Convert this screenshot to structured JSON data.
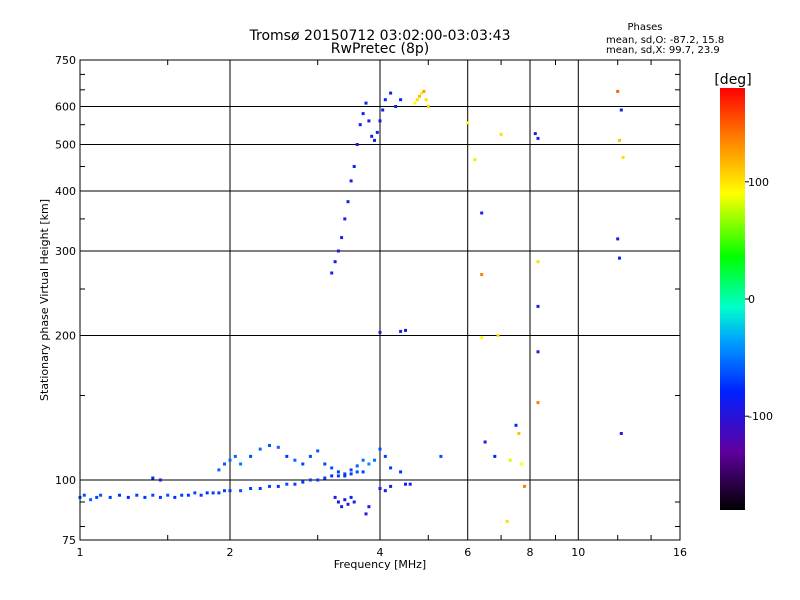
{
  "chart_data": {
    "type": "scatter",
    "title": "Tromsø 20150712 03:02:00-03:03:43",
    "subtitle": "RwPretec (8p)",
    "xlabel": "Frequency [MHz]",
    "ylabel": "Stationary phase Virtual Height [km]",
    "x_scale": "log2",
    "y_scale": "log",
    "xlim": [
      1,
      16
    ],
    "ylim": [
      75,
      750
    ],
    "x_ticks": [
      1,
      2,
      4,
      6,
      8,
      10,
      16
    ],
    "x_tick_labels": [
      "1",
      "2",
      "4",
      "6",
      "8",
      "10",
      "16"
    ],
    "y_ticks": [
      75,
      100,
      200,
      300,
      400,
      500,
      600,
      750
    ],
    "y_tick_labels": [
      "75",
      "100",
      "200",
      "300",
      "400",
      "500",
      "600",
      "750"
    ],
    "grid": true,
    "phase_info": {
      "title": "Phases",
      "line_o": "mean, sd,O: -87.2, 15.8",
      "line_x": "mean, sd,X:  99.7, 23.9"
    },
    "colorbar": {
      "label": "[deg]",
      "range": [
        -180,
        180
      ],
      "ticks": [
        100,
        0,
        -100
      ],
      "tick_labels": [
        "100",
        "0",
        "-100"
      ]
    },
    "series": [
      {
        "color_by": "phase",
        "points": [
          [
            1.0,
            92,
            -75
          ],
          [
            1.02,
            93,
            -80
          ],
          [
            1.05,
            91,
            -70
          ],
          [
            1.08,
            92,
            -85
          ],
          [
            1.1,
            93,
            -78
          ],
          [
            1.15,
            92,
            -90
          ],
          [
            1.2,
            93,
            -95
          ],
          [
            1.25,
            92,
            -100
          ],
          [
            1.3,
            93,
            -88
          ],
          [
            1.35,
            92,
            -92
          ],
          [
            1.4,
            93,
            -85
          ],
          [
            1.45,
            92,
            -90
          ],
          [
            1.5,
            93,
            -80
          ],
          [
            1.55,
            92,
            -95
          ],
          [
            1.6,
            93,
            -88
          ],
          [
            1.65,
            93,
            -92
          ],
          [
            1.7,
            94,
            -85
          ],
          [
            1.75,
            93,
            -90
          ],
          [
            1.8,
            94,
            -95
          ],
          [
            1.85,
            94,
            -88
          ],
          [
            1.9,
            94,
            -90
          ],
          [
            1.95,
            95,
            -85
          ],
          [
            2.0,
            95,
            -92
          ],
          [
            2.1,
            95,
            -80
          ],
          [
            2.2,
            96,
            -88
          ],
          [
            2.3,
            96,
            -90
          ],
          [
            2.4,
            97,
            -85
          ],
          [
            2.5,
            97,
            -92
          ],
          [
            2.6,
            98,
            -80
          ],
          [
            2.7,
            98,
            -88
          ],
          [
            2.8,
            99,
            -90
          ],
          [
            2.9,
            100,
            -85
          ],
          [
            3.0,
            100,
            -92
          ],
          [
            3.1,
            101,
            -88
          ],
          [
            3.2,
            102,
            -95
          ],
          [
            3.3,
            102,
            -90
          ],
          [
            3.4,
            103,
            -85
          ],
          [
            3.5,
            103,
            -92
          ],
          [
            3.6,
            104,
            -80
          ],
          [
            3.7,
            104,
            -88
          ],
          [
            1.4,
            101,
            -100
          ],
          [
            1.45,
            100,
            -105
          ],
          [
            1.9,
            105,
            -70
          ],
          [
            1.95,
            108,
            -75
          ],
          [
            2.0,
            110,
            -65
          ],
          [
            2.05,
            112,
            -70
          ],
          [
            2.1,
            108,
            -60
          ],
          [
            2.2,
            112,
            -80
          ],
          [
            2.3,
            116,
            -65
          ],
          [
            2.4,
            118,
            -75
          ],
          [
            2.5,
            117,
            -70
          ],
          [
            2.6,
            112,
            -90
          ],
          [
            2.7,
            110,
            -70
          ],
          [
            2.8,
            108,
            -85
          ],
          [
            2.9,
            112,
            -80
          ],
          [
            3.0,
            115,
            -75
          ],
          [
            3.1,
            108,
            -85
          ],
          [
            3.2,
            106,
            -80
          ],
          [
            3.3,
            104,
            -90
          ],
          [
            3.4,
            102,
            -95
          ],
          [
            3.5,
            105,
            -85
          ],
          [
            3.6,
            107,
            -70
          ],
          [
            3.7,
            110,
            -65
          ],
          [
            3.8,
            108,
            -50
          ],
          [
            3.9,
            110,
            -60
          ],
          [
            4.0,
            116,
            -80
          ],
          [
            4.1,
            112,
            -85
          ],
          [
            4.2,
            106,
            -90
          ],
          [
            4.4,
            104,
            -95
          ],
          [
            4.6,
            98,
            -100
          ],
          [
            5.3,
            112,
            -80
          ],
          [
            3.25,
            92,
            -110
          ],
          [
            3.3,
            90,
            -115
          ],
          [
            3.35,
            88,
            -110
          ],
          [
            3.4,
            91,
            -120
          ],
          [
            3.45,
            89,
            -115
          ],
          [
            3.5,
            92,
            -105
          ],
          [
            3.55,
            90,
            -110
          ],
          [
            3.75,
            85,
            -115
          ],
          [
            3.8,
            88,
            -110
          ],
          [
            4.0,
            96,
            -110
          ],
          [
            4.1,
            95,
            -115
          ],
          [
            4.2,
            97,
            -105
          ],
          [
            4.5,
            98,
            -110
          ],
          [
            3.2,
            270,
            -110
          ],
          [
            3.25,
            285,
            -108
          ],
          [
            3.3,
            300,
            -112
          ],
          [
            3.35,
            320,
            -105
          ],
          [
            3.4,
            350,
            -110
          ],
          [
            3.45,
            380,
            -105
          ],
          [
            3.5,
            420,
            -108
          ],
          [
            3.55,
            450,
            -105
          ],
          [
            3.6,
            500,
            -110
          ],
          [
            3.65,
            550,
            -105
          ],
          [
            3.7,
            580,
            -108
          ],
          [
            3.75,
            610,
            -105
          ],
          [
            3.8,
            560,
            -112
          ],
          [
            3.85,
            520,
            -110
          ],
          [
            3.9,
            510,
            -105
          ],
          [
            3.95,
            530,
            -108
          ],
          [
            4.0,
            560,
            -110
          ],
          [
            4.05,
            590,
            -108
          ],
          [
            4.1,
            620,
            -105
          ],
          [
            4.2,
            640,
            -110
          ],
          [
            4.3,
            600,
            -105
          ],
          [
            4.4,
            620,
            -100
          ],
          [
            4.7,
            610,
            100
          ],
          [
            4.75,
            620,
            110
          ],
          [
            4.8,
            630,
            120
          ],
          [
            4.85,
            640,
            105
          ],
          [
            4.9,
            645,
            130
          ],
          [
            4.95,
            620,
            110
          ],
          [
            5.0,
            600,
            115
          ],
          [
            4.0,
            203,
            -115
          ],
          [
            4.4,
            204,
            -110
          ],
          [
            4.5,
            205,
            -112
          ],
          [
            6.0,
            555,
            100
          ],
          [
            6.2,
            465,
            90
          ],
          [
            6.4,
            360,
            -110
          ],
          [
            6.4,
            268,
            140
          ],
          [
            6.4,
            198,
            100
          ],
          [
            6.5,
            120,
            -115
          ],
          [
            6.8,
            112,
            -105
          ],
          [
            6.9,
            200,
            110
          ],
          [
            7.0,
            525,
            110
          ],
          [
            7.2,
            82,
            110
          ],
          [
            7.3,
            110,
            90
          ],
          [
            7.5,
            130,
            -100
          ],
          [
            7.6,
            125,
            120
          ],
          [
            7.7,
            108,
            100
          ],
          [
            7.8,
            97,
            140
          ],
          [
            8.2,
            527,
            -110
          ],
          [
            8.3,
            515,
            -108
          ],
          [
            8.3,
            285,
            110
          ],
          [
            8.3,
            230,
            -110
          ],
          [
            8.3,
            185,
            -112
          ],
          [
            8.3,
            145,
            140
          ],
          [
            12.0,
            645,
            150
          ],
          [
            12.2,
            590,
            -110
          ],
          [
            12.1,
            510,
            120
          ],
          [
            12.3,
            470,
            110
          ],
          [
            12.0,
            318,
            -110
          ],
          [
            12.1,
            290,
            -105
          ],
          [
            12.2,
            125,
            -115
          ]
        ]
      }
    ]
  }
}
